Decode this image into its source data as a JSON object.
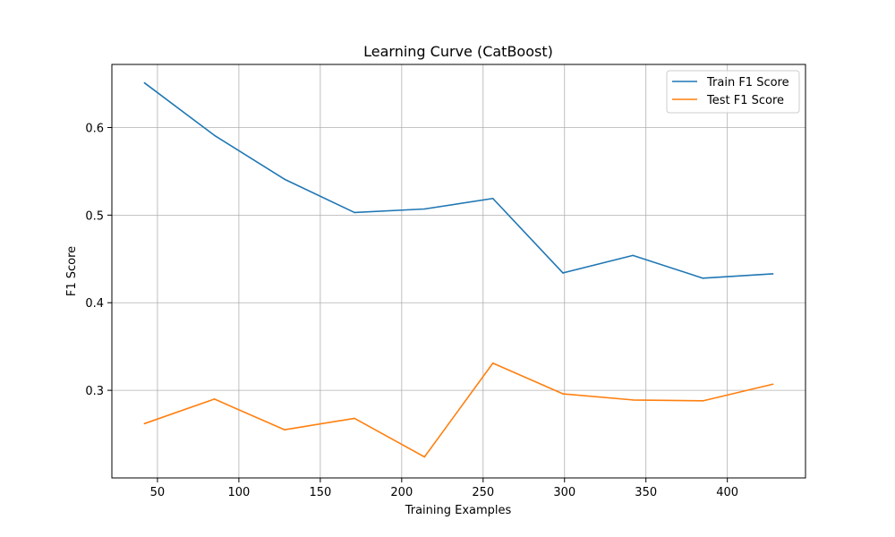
{
  "chart_data": {
    "type": "line",
    "title": "Learning Curve (CatBoost)",
    "xlabel": "Training Examples",
    "ylabel": "F1 Score",
    "xlim": [
      22,
      448
    ],
    "ylim": [
      0.2,
      0.672
    ],
    "xticks": [
      50,
      100,
      150,
      200,
      250,
      300,
      350,
      400
    ],
    "yticks": [
      0.3,
      0.4,
      0.5,
      0.6
    ],
    "grid": true,
    "legend_position": "top-right",
    "x": [
      42,
      85,
      128,
      171,
      214,
      256,
      299,
      342,
      385,
      428
    ],
    "series": [
      {
        "name": "Train F1 Score",
        "color": "#1f77b4",
        "values": [
          0.651,
          0.591,
          0.541,
          0.503,
          0.507,
          0.519,
          0.434,
          0.454,
          0.428,
          0.433
        ]
      },
      {
        "name": "Test F1 Score",
        "color": "#ff7f0e",
        "values": [
          0.262,
          0.29,
          0.255,
          0.268,
          0.224,
          0.331,
          0.296,
          0.289,
          0.288,
          0.307
        ]
      }
    ]
  }
}
